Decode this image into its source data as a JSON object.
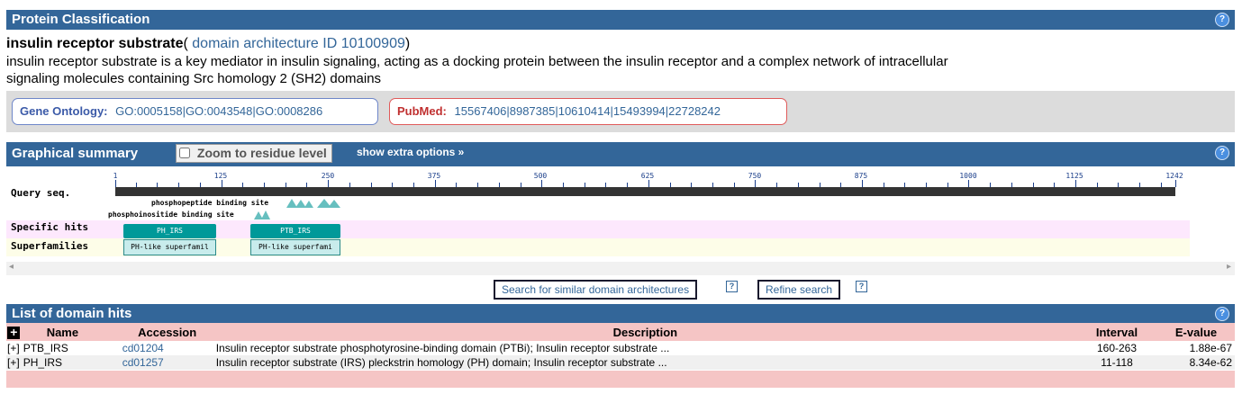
{
  "classification": {
    "title": "Protein Classification",
    "help": "?",
    "protein_name": "insulin receptor substrate",
    "arch_prefix": "(",
    "arch_link": "domain architecture ID 10100909",
    "arch_suffix": ")",
    "description_line1": "insulin receptor substrate is a key mediator in insulin signaling, acting as a docking protein between the insulin receptor and a complex network of intracellular",
    "description_line2": "signaling molecules containing Src homology 2 (SH2) domains",
    "go_label": "Gene Ontology:",
    "go_value": "GO:0005158|GO:0043548|GO:0008286",
    "pubmed_label": "PubMed:",
    "pubmed_value": "15567406|8987385|10610414|15493994|22728242"
  },
  "graphical": {
    "title": "Graphical summary",
    "zoom_label": "Zoom to residue level",
    "zoom_checked": false,
    "extra_options": "show extra options »",
    "help": "?",
    "query_label": "Query seq.",
    "specific_label": "Specific hits",
    "superfamily_label": "Superfamilies",
    "ticks": [
      "1",
      "125",
      "250",
      "375",
      "500",
      "625",
      "750",
      "875",
      "1000",
      "1125",
      "1242"
    ],
    "site1": "phosphopeptide binding site",
    "site2": "phosphoinositide binding site",
    "specific_hits": [
      "PH_IRS",
      "PTB_IRS"
    ],
    "superfamilies": [
      "PH-like superfamil",
      "PH-like superfami"
    ],
    "scroll_left": "◂",
    "scroll_right": "▸"
  },
  "actions": {
    "similar_button": "Search for similar domain architectures",
    "refine_button": "Refine search",
    "help": "?"
  },
  "hits": {
    "title": "List of domain hits",
    "help": "?",
    "expand_all": "+",
    "columns": [
      "Name",
      "Accession",
      "Description",
      "Interval",
      "E-value"
    ],
    "rows": [
      {
        "toggle": "[+]",
        "name": "PTB_IRS",
        "accession": "cd01204",
        "description": "Insulin receptor substrate phosphotyrosine-binding domain (PTBi); Insulin receptor substrate ...",
        "interval": "160-263",
        "evalue": "1.88e-67"
      },
      {
        "toggle": "[+]",
        "name": "PH_IRS",
        "accession": "cd01257",
        "description": "Insulin receptor substrate (IRS) pleckstrin homology (PH) domain; Insulin receptor substrate ...",
        "interval": "11-118",
        "evalue": "8.34e-62"
      }
    ]
  },
  "colors": {
    "header_bar": "#336699",
    "specific_hit": "#009999",
    "superfamily": "#c8ecec",
    "specific_band": "#fde8fd",
    "superfamily_band": "#fdfde8",
    "table_header": "#f5c5c5"
  }
}
